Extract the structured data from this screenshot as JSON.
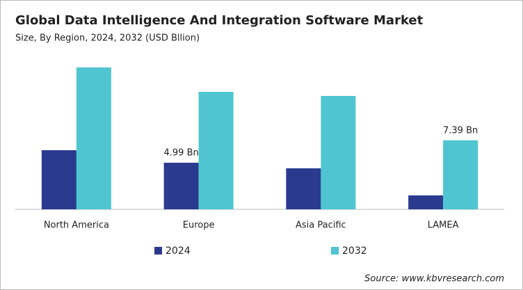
{
  "chart_data": {
    "type": "bar",
    "title": "Global Data Intelligence And Integration Software Market",
    "subtitle": "Size, By Region, 2024, 2032 (USD Bllion)",
    "categories": [
      "North America",
      "Europe",
      "Asia Pacific",
      "LAMEA"
    ],
    "series": [
      {
        "name": "2024",
        "color": "#2a3a8f",
        "values": [
          6.33,
          4.99,
          4.39,
          1.49
        ],
        "value_labels": [
          null,
          "4.99 Bn",
          null,
          null
        ]
      },
      {
        "name": "2032",
        "color": "#4ec5d0",
        "values": [
          15.19,
          12.58,
          12.14,
          7.39
        ],
        "value_labels": [
          null,
          null,
          null,
          "7.39 Bn"
        ]
      }
    ],
    "source": "Source: www.kbvresearch.com"
  }
}
